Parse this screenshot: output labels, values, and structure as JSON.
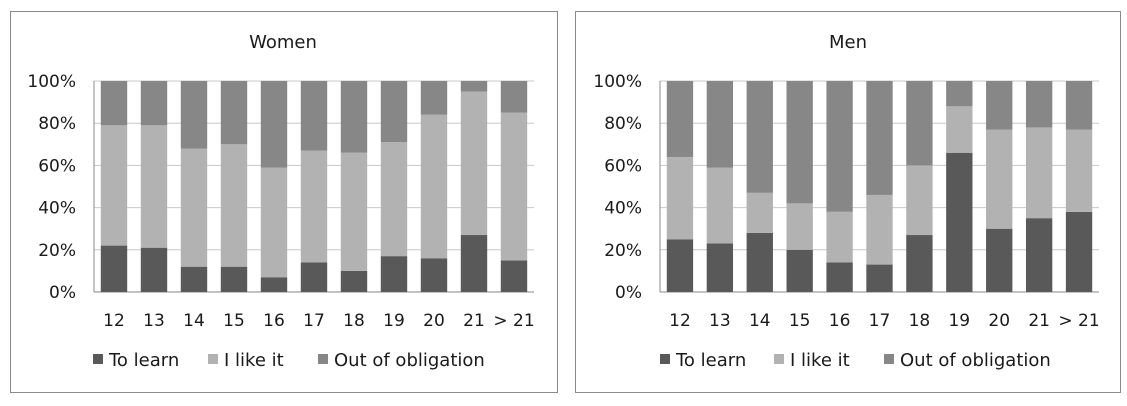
{
  "colors": {
    "to_learn": "#595959",
    "like_it": "#b2b2b2",
    "obligation": "#878787",
    "grid": "#c8c8c8",
    "axis": "#8a8a8a",
    "text": "#1a1a1a"
  },
  "chart_data": [
    {
      "type": "bar",
      "stacked": true,
      "title": "Women",
      "categories": [
        "12",
        "13",
        "14",
        "15",
        "16",
        "17",
        "18",
        "19",
        "20",
        "21",
        "> 21"
      ],
      "y_ticks": [
        "0%",
        "20%",
        "40%",
        "60%",
        "80%",
        "100%"
      ],
      "ylim": [
        0,
        100
      ],
      "grid": true,
      "legend_position": "bottom",
      "series": [
        {
          "name": "To learn",
          "color_key": "to_learn",
          "values": [
            22,
            21,
            12,
            12,
            7,
            14,
            10,
            17,
            16,
            27,
            15
          ]
        },
        {
          "name": "I like it",
          "color_key": "like_it",
          "values": [
            57,
            58,
            56,
            58,
            52,
            53,
            56,
            54,
            68,
            68,
            70
          ]
        },
        {
          "name": "Out of obligation",
          "color_key": "obligation",
          "values": [
            21,
            21,
            32,
            30,
            41,
            33,
            34,
            29,
            16,
            5,
            15
          ]
        }
      ]
    },
    {
      "type": "bar",
      "stacked": true,
      "title": "Men",
      "categories": [
        "12",
        "13",
        "14",
        "15",
        "16",
        "17",
        "18",
        "19",
        "20",
        "21",
        "> 21"
      ],
      "y_ticks": [
        "0%",
        "20%",
        "40%",
        "60%",
        "80%",
        "100%"
      ],
      "ylim": [
        0,
        100
      ],
      "grid": true,
      "legend_position": "bottom",
      "series": [
        {
          "name": "To learn",
          "color_key": "to_learn",
          "values": [
            25,
            23,
            28,
            20,
            14,
            13,
            27,
            66,
            30,
            35,
            38
          ]
        },
        {
          "name": "I like it",
          "color_key": "like_it",
          "values": [
            39,
            36,
            19,
            22,
            24,
            33,
            33,
            22,
            47,
            43,
            39
          ]
        },
        {
          "name": "Out of obligation",
          "color_key": "obligation",
          "values": [
            36,
            41,
            53,
            58,
            62,
            54,
            40,
            12,
            23,
            22,
            23
          ]
        }
      ]
    }
  ]
}
